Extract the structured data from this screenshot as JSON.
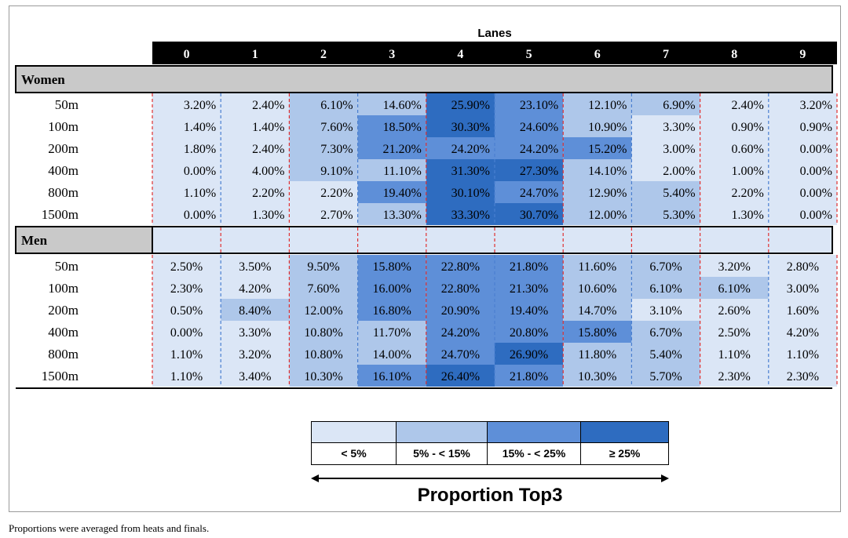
{
  "chart_data": {
    "type": "heatmap",
    "title": "Lanes",
    "lanes": [
      "0",
      "1",
      "2",
      "3",
      "4",
      "5",
      "6",
      "7",
      "8",
      "9"
    ],
    "groups": [
      {
        "name": "Women",
        "rows": [
          {
            "label": "50m",
            "values": [
              3.2,
              2.4,
              6.1,
              14.6,
              25.9,
              23.1,
              12.1,
              6.9,
              2.4,
              3.2
            ]
          },
          {
            "label": "100m",
            "values": [
              1.4,
              1.4,
              7.6,
              18.5,
              30.3,
              24.6,
              10.9,
              3.3,
              0.9,
              0.9
            ]
          },
          {
            "label": "200m",
            "values": [
              1.8,
              2.4,
              7.3,
              21.2,
              24.2,
              24.2,
              15.2,
              3.0,
              0.6,
              0.0
            ]
          },
          {
            "label": "400m",
            "values": [
              0.0,
              4.0,
              9.1,
              11.1,
              31.3,
              27.3,
              14.1,
              2.0,
              1.0,
              0.0
            ]
          },
          {
            "label": "800m",
            "values": [
              1.1,
              2.2,
              2.2,
              19.4,
              30.1,
              24.7,
              12.9,
              5.4,
              2.2,
              0.0
            ]
          },
          {
            "label": "1500m",
            "values": [
              0.0,
              1.3,
              2.7,
              13.3,
              33.3,
              30.7,
              12.0,
              5.3,
              1.3,
              0.0
            ]
          }
        ]
      },
      {
        "name": "Men",
        "rows": [
          {
            "label": "50m",
            "values": [
              2.5,
              3.5,
              9.5,
              15.8,
              22.8,
              21.8,
              11.6,
              6.7,
              3.2,
              2.8
            ]
          },
          {
            "label": "100m",
            "values": [
              2.3,
              4.2,
              7.6,
              16.0,
              22.8,
              21.3,
              10.6,
              6.1,
              6.1,
              3.0
            ]
          },
          {
            "label": "200m",
            "values": [
              0.5,
              8.4,
              12.0,
              16.8,
              20.9,
              19.4,
              14.7,
              3.1,
              2.6,
              1.6
            ]
          },
          {
            "label": "400m",
            "values": [
              0.0,
              3.3,
              10.8,
              11.7,
              24.2,
              20.8,
              15.8,
              6.7,
              2.5,
              4.2
            ]
          },
          {
            "label": "800m",
            "values": [
              1.1,
              3.2,
              10.8,
              14.0,
              24.7,
              26.9,
              11.8,
              5.4,
              1.1,
              1.1
            ]
          },
          {
            "label": "1500m",
            "values": [
              1.1,
              3.4,
              10.3,
              16.1,
              26.4,
              21.8,
              10.3,
              5.7,
              2.3,
              2.3
            ]
          }
        ]
      }
    ],
    "legend": {
      "title": "Proportion Top3",
      "bins": [
        {
          "label": "< 5%",
          "color": "#dbe6f6"
        },
        {
          "label": "5% - < 15%",
          "color": "#aec7ea"
        },
        {
          "label": "15% - < 25%",
          "color": "#5e8fd8"
        },
        {
          "label": "≥ 25%",
          "color": "#2e6cc0"
        }
      ]
    }
  },
  "footnote": "Proportions were averaged from heats and finals."
}
